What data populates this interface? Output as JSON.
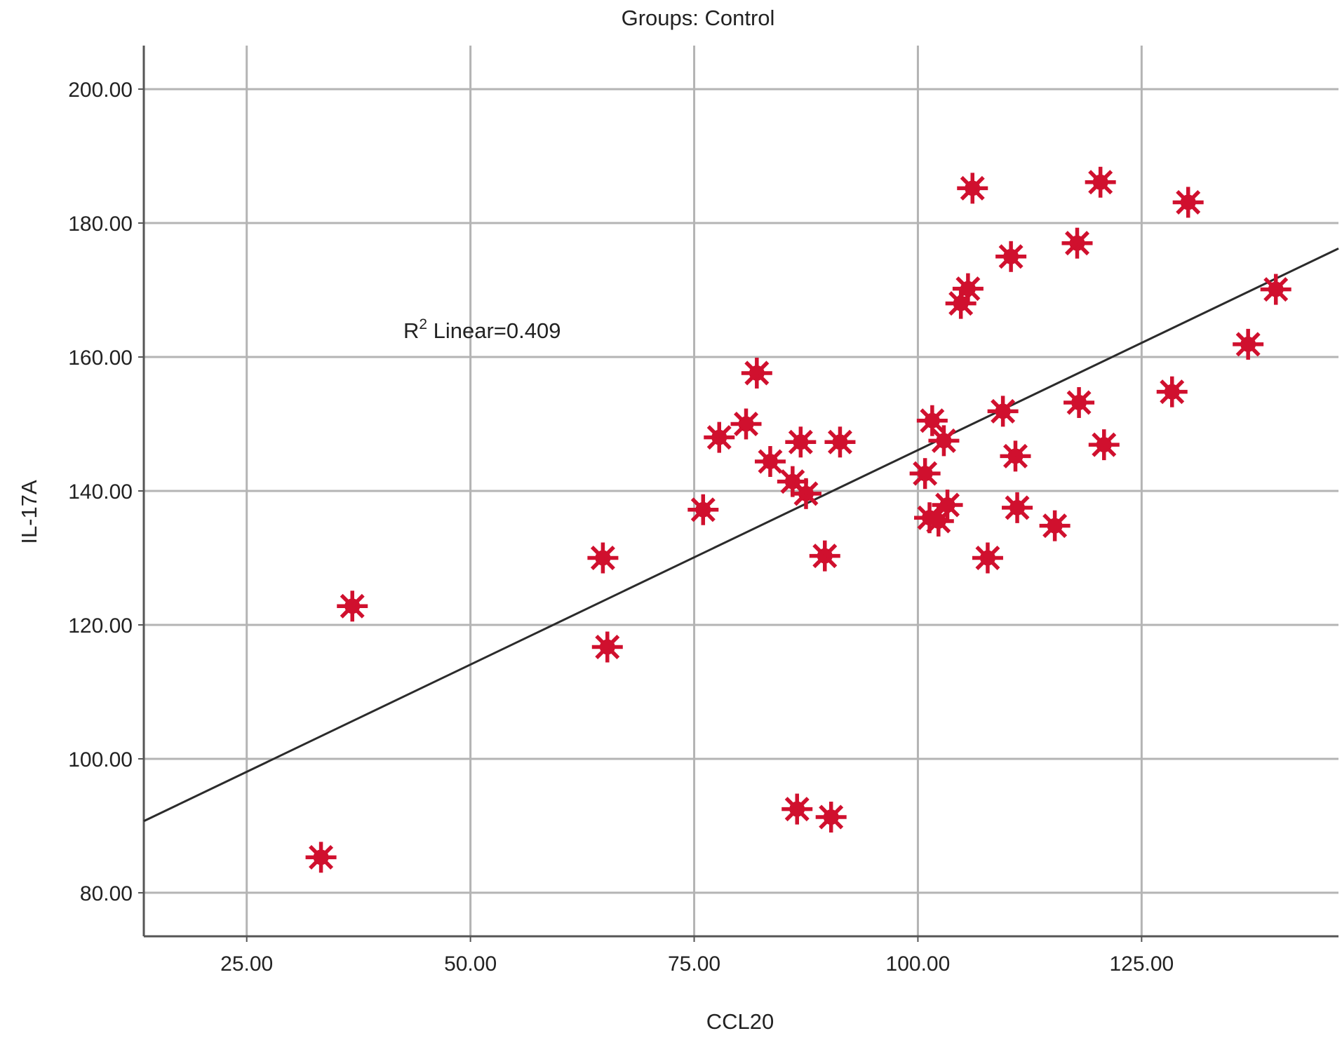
{
  "chart_data": {
    "type": "scatter",
    "title": "Groups: Control",
    "xlabel": "CCL20",
    "ylabel": "IL-17A",
    "xlim": [
      13.5,
      147
    ],
    "ylim": [
      73.5,
      206.5
    ],
    "x_ticks": [
      25,
      50,
      75,
      100,
      125
    ],
    "y_ticks": [
      80,
      100,
      120,
      140,
      160,
      180,
      200
    ],
    "x_tick_labels": [
      "25.00",
      "50.00",
      "75.00",
      "100.00",
      "125.00"
    ],
    "y_tick_labels": [
      "80.00",
      "100.00",
      "120.00",
      "140.00",
      "160.00",
      "180.00",
      "200.00"
    ],
    "grid": true,
    "marker": "asterisk",
    "marker_color": "#d0102e",
    "line_color": "#2b2b2b",
    "fit_line": {
      "type": "linear",
      "x": [
        13.5,
        147
      ],
      "y": [
        90.7,
        176.2
      ]
    },
    "annotation": {
      "prefix": "R",
      "superscript": "2",
      "suffix": " Linear=0.409",
      "x": 42.5,
      "y": 164
    },
    "points": [
      {
        "x": 33.3,
        "y": 85.3
      },
      {
        "x": 36.8,
        "y": 122.8
      },
      {
        "x": 64.8,
        "y": 130.0
      },
      {
        "x": 65.3,
        "y": 116.7
      },
      {
        "x": 76.0,
        "y": 137.2
      },
      {
        "x": 77.8,
        "y": 148.0
      },
      {
        "x": 80.8,
        "y": 150.0
      },
      {
        "x": 82.0,
        "y": 157.6
      },
      {
        "x": 83.5,
        "y": 144.4
      },
      {
        "x": 86.0,
        "y": 141.4
      },
      {
        "x": 86.5,
        "y": 92.5
      },
      {
        "x": 86.9,
        "y": 147.3
      },
      {
        "x": 87.5,
        "y": 139.6
      },
      {
        "x": 89.6,
        "y": 130.3
      },
      {
        "x": 90.3,
        "y": 91.3
      },
      {
        "x": 91.3,
        "y": 147.3
      },
      {
        "x": 100.8,
        "y": 142.6
      },
      {
        "x": 101.3,
        "y": 136.0
      },
      {
        "x": 101.6,
        "y": 150.5
      },
      {
        "x": 102.3,
        "y": 135.5
      },
      {
        "x": 102.9,
        "y": 147.5
      },
      {
        "x": 103.3,
        "y": 137.9
      },
      {
        "x": 104.8,
        "y": 168.0
      },
      {
        "x": 105.6,
        "y": 170.2
      },
      {
        "x": 106.1,
        "y": 185.2
      },
      {
        "x": 107.8,
        "y": 130.0
      },
      {
        "x": 109.5,
        "y": 151.9
      },
      {
        "x": 110.4,
        "y": 175.0
      },
      {
        "x": 110.9,
        "y": 145.2
      },
      {
        "x": 111.1,
        "y": 137.5
      },
      {
        "x": 115.3,
        "y": 134.8
      },
      {
        "x": 117.8,
        "y": 177.0
      },
      {
        "x": 118.0,
        "y": 153.2
      },
      {
        "x": 120.4,
        "y": 186.1
      },
      {
        "x": 120.8,
        "y": 146.9
      },
      {
        "x": 128.4,
        "y": 154.8
      },
      {
        "x": 130.2,
        "y": 183.1
      },
      {
        "x": 136.9,
        "y": 161.9
      },
      {
        "x": 140.0,
        "y": 170.1
      }
    ]
  }
}
